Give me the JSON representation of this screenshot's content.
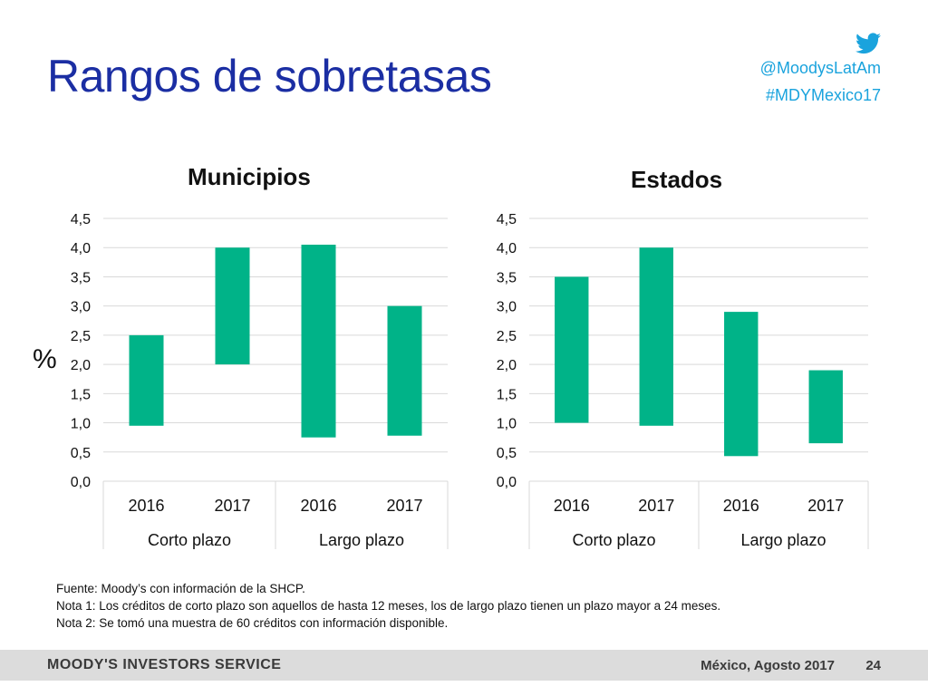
{
  "slide": {
    "title": "Rangos de sobretasas",
    "social": {
      "handle": "@MoodysLatAm",
      "hashtag": "#MDYMexico17",
      "icon": "twitter-bird-icon"
    },
    "y_unit": "%",
    "notes": [
      "Fuente: Moody’s con información de la SHCP.",
      "Nota 1: Los créditos de corto plazo son aquellos de hasta 12 meses, los de largo plazo tienen un plazo mayor a 24 meses.",
      "Nota 2: Se tomó una muestra de 60 créditos con información disponible."
    ],
    "footer": {
      "brand": "MOODY'S INVESTORS SERVICE",
      "date": "México, Agosto 2017",
      "page": "24"
    }
  },
  "colors": {
    "title": "#1b2ea3",
    "bar": "#00b388",
    "social": "#1aa3dd",
    "grid": "#d9d9d9"
  },
  "chart_data": [
    {
      "type": "bar",
      "subtype": "floating-range",
      "title": "Municipios",
      "categories": [
        "2016",
        "2017",
        "2016",
        "2017"
      ],
      "groups": [
        {
          "label": "Corto plazo",
          "categories": [
            "2016",
            "2017"
          ]
        },
        {
          "label": "Largo plazo",
          "categories": [
            "2016",
            "2017"
          ]
        }
      ],
      "low": [
        0.95,
        2.0,
        0.75,
        0.78
      ],
      "high": [
        2.5,
        4.0,
        4.05,
        3.0
      ],
      "ylim": [
        0,
        4.5
      ],
      "yticks": [
        "0,0",
        "0,5",
        "1,0",
        "1,5",
        "2,0",
        "2,5",
        "3,0",
        "3,5",
        "4,0",
        "4,5"
      ],
      "ylabel": "%",
      "grid": true,
      "legend": "none"
    },
    {
      "type": "bar",
      "subtype": "floating-range",
      "title": "Estados",
      "categories": [
        "2016",
        "2017",
        "2016",
        "2017"
      ],
      "groups": [
        {
          "label": "Corto plazo",
          "categories": [
            "2016",
            "2017"
          ]
        },
        {
          "label": "Largo plazo",
          "categories": [
            "2016",
            "2017"
          ]
        }
      ],
      "low": [
        1.0,
        0.95,
        0.43,
        0.65
      ],
      "high": [
        3.5,
        4.0,
        2.9,
        1.9
      ],
      "ylim": [
        0,
        4.5
      ],
      "yticks": [
        "0,0",
        "0,5",
        "1,0",
        "1,5",
        "2,0",
        "2,5",
        "3,0",
        "3,5",
        "4,0",
        "4,5"
      ],
      "grid": true,
      "legend": "none"
    }
  ]
}
